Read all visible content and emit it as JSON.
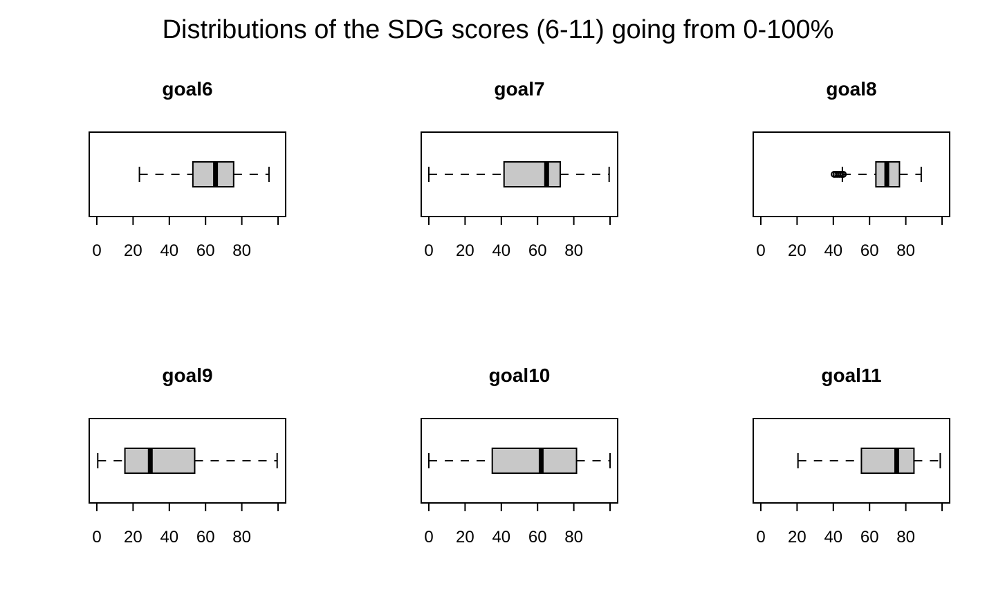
{
  "title": "Distributions of the SDG scores (6-11) going from 0-100%",
  "chart_data": [
    {
      "type": "boxplot",
      "title": "goal6",
      "orientation": "horizontal",
      "xlim": [
        0,
        100
      ],
      "ticks": [
        0,
        20,
        40,
        60,
        80
      ],
      "tick_labels": [
        "0",
        "20",
        "40",
        "60",
        "80"
      ],
      "whisker_low": 23.5,
      "q1": 53,
      "median": 65.5,
      "q3": 75.5,
      "whisker_high": 95,
      "outliers": []
    },
    {
      "type": "boxplot",
      "title": "goal7",
      "orientation": "horizontal",
      "xlim": [
        0,
        100
      ],
      "ticks": [
        0,
        20,
        40,
        60,
        80
      ],
      "tick_labels": [
        "0",
        "20",
        "40",
        "60",
        "80"
      ],
      "whisker_low": 0,
      "q1": 41.5,
      "median": 65,
      "q3": 72.5,
      "whisker_high": 99.5,
      "outliers": []
    },
    {
      "type": "boxplot",
      "title": "goal8",
      "orientation": "horizontal",
      "xlim": [
        0,
        100
      ],
      "ticks": [
        0,
        20,
        40,
        60,
        80
      ],
      "tick_labels": [
        "0",
        "20",
        "40",
        "60",
        "80"
      ],
      "whisker_low": 45,
      "q1": 63.5,
      "median": 69.5,
      "q3": 76.5,
      "whisker_high": 88.5,
      "outliers": [
        40.5,
        41.5,
        42.5,
        43.5,
        44.5,
        45.5
      ]
    },
    {
      "type": "boxplot",
      "title": "goal9",
      "orientation": "horizontal",
      "xlim": [
        0,
        100
      ],
      "ticks": [
        0,
        20,
        40,
        60,
        80
      ],
      "tick_labels": [
        "0",
        "20",
        "40",
        "60",
        "80"
      ],
      "whisker_low": 0.5,
      "q1": 15.5,
      "median": 29.5,
      "q3": 54,
      "whisker_high": 99.5,
      "outliers": []
    },
    {
      "type": "boxplot",
      "title": "goal10",
      "orientation": "horizontal",
      "xlim": [
        0,
        100
      ],
      "ticks": [
        0,
        20,
        40,
        60,
        80
      ],
      "tick_labels": [
        "0",
        "20",
        "40",
        "60",
        "80"
      ],
      "whisker_low": 0,
      "q1": 35,
      "median": 62,
      "q3": 81.5,
      "whisker_high": 100,
      "outliers": []
    },
    {
      "type": "boxplot",
      "title": "goal11",
      "orientation": "horizontal",
      "xlim": [
        0,
        100
      ],
      "ticks": [
        0,
        20,
        40,
        60,
        80
      ],
      "tick_labels": [
        "0",
        "20",
        "40",
        "60",
        "80"
      ],
      "whisker_low": 20.5,
      "q1": 55.5,
      "median": 75,
      "q3": 84.5,
      "whisker_high": 99,
      "outliers": []
    }
  ],
  "colors": {
    "box_fill": "#c8c8c8",
    "line": "#000000",
    "background": "#ffffff"
  }
}
